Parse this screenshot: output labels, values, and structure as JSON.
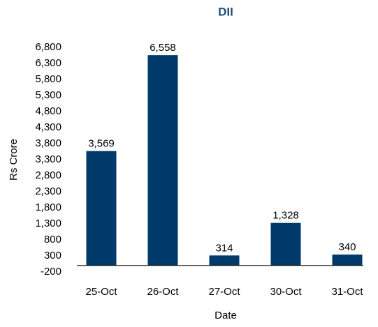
{
  "chart_data": {
    "type": "bar",
    "title": "DII",
    "x_label": "Date",
    "y_label": "Rs Crore",
    "categories": [
      "25-Oct",
      "26-Oct",
      "27-Oct",
      "30-Oct",
      "31-Oct"
    ],
    "values": [
      3569,
      6558,
      314,
      1328,
      340
    ],
    "value_labels": [
      "3,569",
      "6,558",
      "314",
      "1,328",
      "340"
    ],
    "color": "#003a6b",
    "ylim": [
      -200,
      6800
    ],
    "yticks": [
      -200,
      300,
      800,
      {
        "value": 1300,
        "label": "1,300"
      },
      {
        "value": 1800,
        "label": "1,800"
      },
      {
        "value": 2300,
        "label": "2,300"
      },
      {
        "value": 2800,
        "label": "2,800"
      },
      {
        "value": 3300,
        "label": "3,300"
      },
      {
        "value": 3800,
        "label": "3,800"
      },
      {
        "value": 4300,
        "label": "4,300"
      },
      {
        "value": 4800,
        "label": "4,800"
      },
      {
        "value": 5300,
        "label": "5,300"
      },
      {
        "value": 5800,
        "label": "5,800"
      },
      {
        "value": 6300,
        "label": "6,300"
      },
      {
        "value": 6800,
        "label": "6,800"
      }
    ],
    "grid": false
  }
}
